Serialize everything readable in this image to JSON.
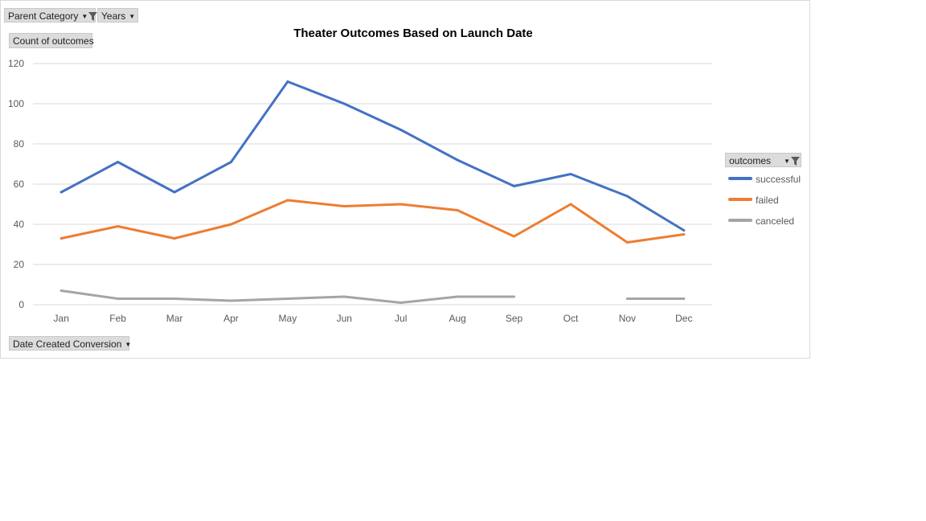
{
  "filters": {
    "parent_category": "Parent Category",
    "years": "Years",
    "values_field": "Count of outcomes",
    "axis_field": "Date Created Conversion",
    "legend_field": "outcomes"
  },
  "colors": {
    "successful": "#4472c4",
    "failed": "#ed7d31",
    "canceled": "#a5a5a5",
    "gridline": "#d9d9d9",
    "tick_text": "#595959"
  },
  "chart_data": {
    "type": "line",
    "title": "Theater Outcomes Based on Launch Date",
    "xlabel": "",
    "ylabel": "",
    "categories": [
      "Jan",
      "Feb",
      "Mar",
      "Apr",
      "May",
      "Jun",
      "Jul",
      "Aug",
      "Sep",
      "Oct",
      "Nov",
      "Dec"
    ],
    "ylim": [
      0,
      120
    ],
    "yticks": [
      0,
      20,
      40,
      60,
      80,
      100,
      120
    ],
    "grid": true,
    "legend_position": "right",
    "series": [
      {
        "name": "successful",
        "values": [
          56,
          71,
          56,
          71,
          111,
          100,
          87,
          72,
          59,
          65,
          54,
          37
        ]
      },
      {
        "name": "failed",
        "values": [
          33,
          39,
          33,
          40,
          52,
          49,
          50,
          47,
          34,
          50,
          31,
          35
        ]
      },
      {
        "name": "canceled",
        "values": [
          7,
          3,
          3,
          2,
          3,
          4,
          1,
          4,
          4,
          null,
          3,
          3
        ]
      }
    ]
  }
}
